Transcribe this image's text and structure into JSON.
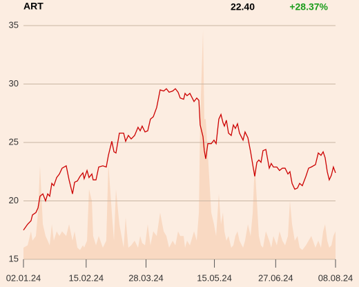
{
  "chart_data": {
    "type": "line",
    "title": "ART",
    "price": "22.40",
    "change": "+28.37%",
    "change_color": "#1a9c1a",
    "x": [
      0,
      2.9,
      5.3,
      6.3,
      8.7,
      10.2,
      11.6,
      13.6,
      15.5,
      17.0,
      18.4,
      19.9,
      21.3,
      23.3,
      25.2,
      27.1,
      30.0,
      32.0,
      34.4,
      35.9,
      37.8,
      39.7,
      41.7,
      42.6,
      44.6,
      46.0,
      48.0,
      48.9,
      50.9,
      52.8,
      55.7,
      58.1,
      59.6,
      62.0,
      63.5,
      64.9,
      67.3,
      70.3,
      71.7,
      73.6,
      75.6,
      78.0,
      80.4,
      81.9,
      83.3,
      85.3,
      87.2,
      89.1,
      91.1,
      93.5,
      95.9,
      98.4,
      100.3,
      102.2,
      104.7,
      106.6,
      108.5,
      110.0,
      112.4,
      113.4,
      114.8,
      116.8,
      119.7,
      121.6,
      123.1,
      124.0,
      126.0,
      126.9,
      127.9,
      129.4,
      131.8,
      133.7,
      135.2,
      137.1,
      138.6,
      140.0,
      141.0,
      142.4,
      143.9,
      145.8,
      147.3,
      148.7,
      150.2,
      151.6,
      154.1,
      155.5,
      157.5,
      159.4,
      160.9,
      162.3,
      163.8,
      165.2,
      166.7,
      168.1,
      170.1,
      172.5,
      173.9,
      175.4,
      177.8,
      179.7,
      181.7,
      183.6,
      185.6,
      187.0,
      188.5,
      190.4,
      192.3,
      193.8,
      195.7,
      198.2,
      200.1,
      202.0,
      204.9,
      206.9,
      208.8,
      210.3,
      211.7,
      213.2,
      214.6,
      216.1,
      217.5,
      219.0
    ],
    "series": [
      {
        "color": "#cc0000",
        "values": [
          17.5,
          18.0,
          18.3,
          18.8,
          19.0,
          19.4,
          20.4,
          20.6,
          20.0,
          20.6,
          20.4,
          21.5,
          21.3,
          22.0,
          22.3,
          22.8,
          23.0,
          21.8,
          20.6,
          21.6,
          21.7,
          22.1,
          22.4,
          21.9,
          22.6,
          22.0,
          22.3,
          21.8,
          21.8,
          22.9,
          23.0,
          22.9,
          23.9,
          25.1,
          24.2,
          24.1,
          25.8,
          25.8,
          25.1,
          25.6,
          25.3,
          25.6,
          26.3,
          26.0,
          26.4,
          25.9,
          26.0,
          27.0,
          27.2,
          28.0,
          29.5,
          29.4,
          29.6,
          29.3,
          29.4,
          29.6,
          29.3,
          28.8,
          28.7,
          29.2,
          29.0,
          29.2,
          28.5,
          28.8,
          28.6,
          26.5,
          25.5,
          24.3,
          23.6,
          24.9,
          24.9,
          25.2,
          24.9,
          27.0,
          27.4,
          26.7,
          26.4,
          26.9,
          25.8,
          25.6,
          26.5,
          26.2,
          26.6,
          25.8,
          25.2,
          25.9,
          25.4,
          24.2,
          23.1,
          22.1,
          23.3,
          23.5,
          23.3,
          24.3,
          24.4,
          22.8,
          23.2,
          22.9,
          22.9,
          22.6,
          22.8,
          22.8,
          22.3,
          22.5,
          21.5,
          21.0,
          21.1,
          21.5,
          21.3,
          22.1,
          22.8,
          22.9,
          23.1,
          24.1,
          23.9,
          24.2,
          23.7,
          22.5,
          21.8,
          22.2,
          22.9,
          22.4
        ]
      },
      {
        "color": "#f9d9c2",
        "axis": "y2",
        "values": [
          5,
          6,
          12,
          8,
          10,
          20,
          40,
          15,
          10,
          8,
          6,
          15,
          8,
          12,
          10,
          12,
          10,
          15,
          8,
          12,
          5,
          4,
          6,
          5,
          8,
          30,
          25,
          10,
          6,
          10,
          5,
          8,
          41,
          20,
          8,
          30,
          15,
          5,
          18,
          5,
          6,
          8,
          5,
          10,
          7,
          6,
          15,
          6,
          12,
          10,
          20,
          12,
          10,
          5,
          8,
          6,
          12,
          10,
          10,
          5,
          8,
          6,
          12,
          8,
          20,
          60,
          98,
          60,
          60,
          45,
          20,
          15,
          10,
          28,
          15,
          20,
          12,
          8,
          10,
          5,
          6,
          10,
          12,
          8,
          5,
          8,
          15,
          10,
          20,
          41,
          25,
          10,
          6,
          5,
          12,
          8,
          5,
          10,
          6,
          12,
          8,
          6,
          10,
          25,
          15,
          8,
          10,
          5,
          4,
          6,
          8,
          10,
          5,
          8,
          5,
          12,
          15,
          8,
          5,
          6,
          10,
          12
        ]
      }
    ],
    "xlim": [
      0,
      219
    ],
    "xticks": [
      {
        "value": 0,
        "label": "02.01.24"
      },
      {
        "value": 44,
        "label": "15.02.24"
      },
      {
        "value": 86,
        "label": "28.03.24"
      },
      {
        "value": 134,
        "label": "15.05.24"
      },
      {
        "value": 177,
        "label": "27.06.24"
      },
      {
        "value": 219,
        "label": "08.08.24"
      }
    ],
    "ylim": [
      15,
      35
    ],
    "yticks": [
      15,
      20,
      25,
      30,
      35
    ],
    "y2lim": [
      0,
      100
    ],
    "grid": true
  }
}
